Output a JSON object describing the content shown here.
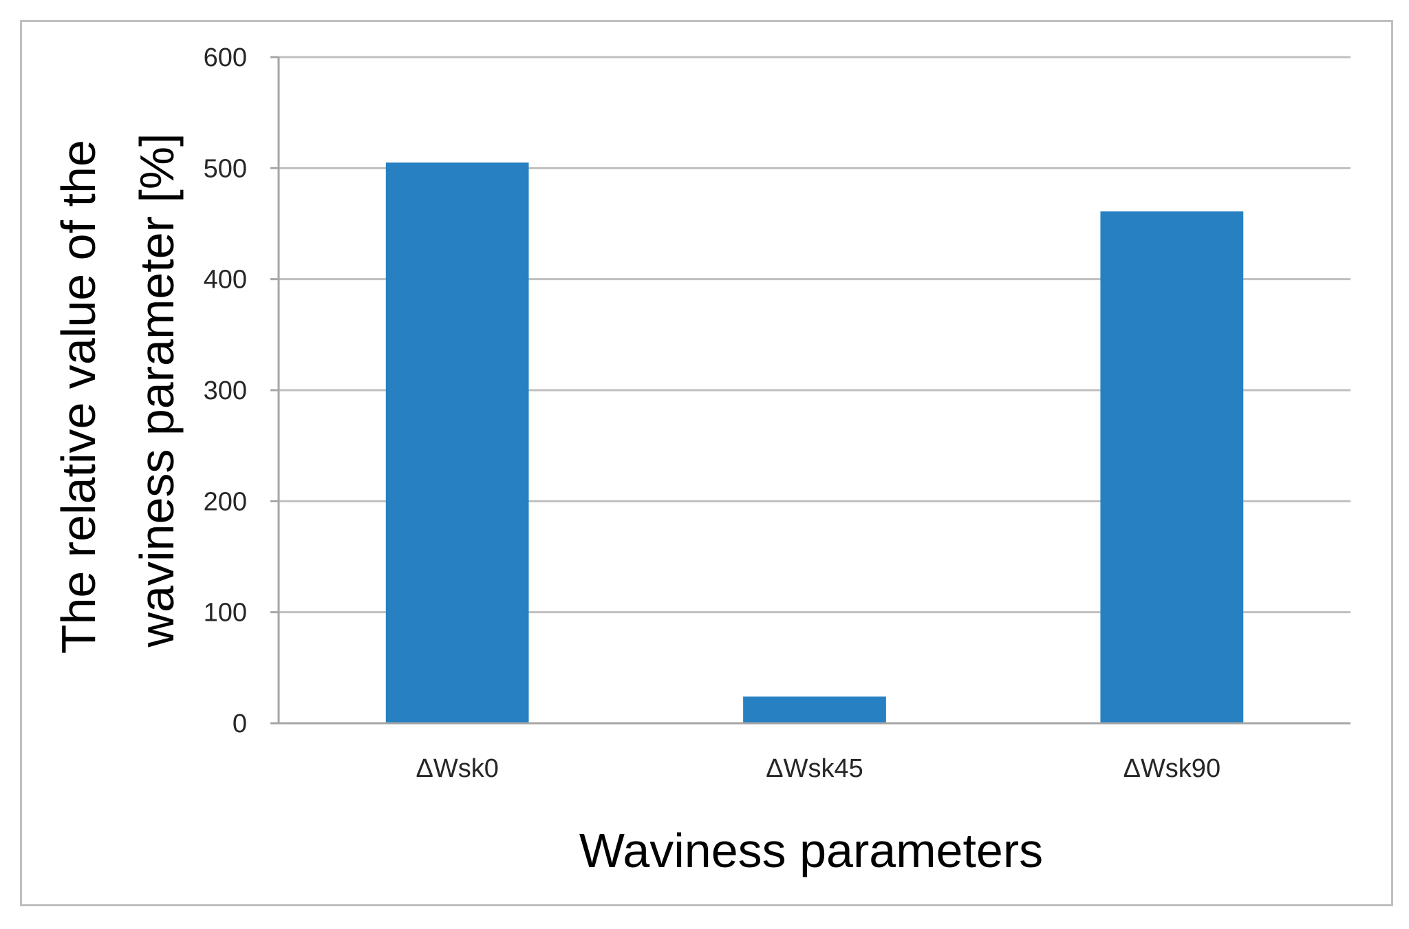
{
  "chart_data": {
    "type": "bar",
    "categories": [
      "ΔWsk0",
      "ΔWsk45",
      "ΔWsk90"
    ],
    "values": [
      505,
      24,
      461
    ],
    "xlabel": "Waviness parameters",
    "ylabel_lines": [
      "The relative value of the",
      "waviness parameter [%]"
    ],
    "ylim": [
      0,
      600
    ],
    "yticks": [
      0,
      100,
      200,
      300,
      400,
      500,
      600
    ],
    "grid": true,
    "legend": "none",
    "colors": {
      "bar": "#2680c2",
      "grid": "#bfbfbf",
      "axis": "#a6a6a6",
      "frame": "#bfbfbf"
    }
  }
}
